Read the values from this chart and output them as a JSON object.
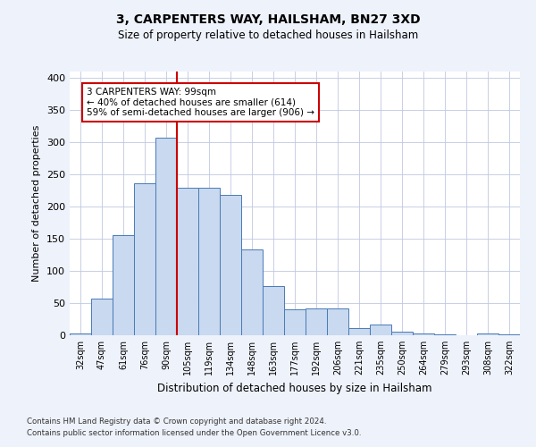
{
  "title1": "3, CARPENTERS WAY, HAILSHAM, BN27 3XD",
  "title2": "Size of property relative to detached houses in Hailsham",
  "xlabel": "Distribution of detached houses by size in Hailsham",
  "ylabel": "Number of detached properties",
  "categories": [
    "32sqm",
    "47sqm",
    "61sqm",
    "76sqm",
    "90sqm",
    "105sqm",
    "119sqm",
    "134sqm",
    "148sqm",
    "163sqm",
    "177sqm",
    "192sqm",
    "206sqm",
    "221sqm",
    "235sqm",
    "250sqm",
    "264sqm",
    "279sqm",
    "293sqm",
    "308sqm",
    "322sqm"
  ],
  "values": [
    3,
    57,
    155,
    236,
    307,
    230,
    230,
    218,
    133,
    77,
    41,
    42,
    42,
    11,
    17,
    6,
    3,
    1,
    0,
    3,
    2
  ],
  "bar_color": "#c8d9f0",
  "bar_edge_color": "#4a7ab5",
  "vline_x": 4.5,
  "vline_color": "#cc0000",
  "annotation_line1": "3 CARPENTERS WAY: 99sqm",
  "annotation_line2": "← 40% of detached houses are smaller (614)",
  "annotation_line3": "59% of semi-detached houses are larger (906) →",
  "annotation_box_color": "white",
  "annotation_box_edge": "#cc0000",
  "ylim": [
    0,
    410
  ],
  "yticks": [
    0,
    50,
    100,
    150,
    200,
    250,
    300,
    350,
    400
  ],
  "footer1": "Contains HM Land Registry data © Crown copyright and database right 2024.",
  "footer2": "Contains public sector information licensed under the Open Government Licence v3.0.",
  "bg_color": "#eef2fb",
  "plot_bg_color": "#ffffff",
  "grid_color": "#c0c8e0"
}
